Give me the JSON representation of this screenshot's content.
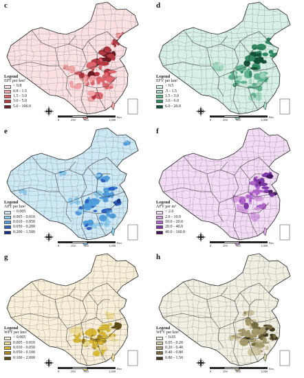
{
  "panels": [
    {
      "id": "c",
      "label": "c",
      "legend_title": "Legend",
      "legend_unit": "EPT per km²",
      "classes": [
        {
          "label": "< 0.8",
          "color": "#fbe1e1"
        },
        {
          "label": "0.8 - 1.5",
          "color": "#f3a4a7"
        },
        {
          "label": "1.5 - 3.0",
          "color": "#e0656d"
        },
        {
          "label": "3.0 - 5.0",
          "color": "#b9353f"
        },
        {
          "label": "5.0 - 100.0",
          "color": "#6a1a22"
        }
      ]
    },
    {
      "id": "d",
      "label": "d",
      "legend_title": "Legend",
      "legend_unit": "EFV per km²",
      "classes": [
        {
          "label": "< 0.5",
          "color": "#d6f0e6"
        },
        {
          "label": ".5 - 1.5",
          "color": "#9fd7bf"
        },
        {
          "label": "1.5 - 3.0",
          "color": "#5fb590"
        },
        {
          "label": "3.0 - 6.0",
          "color": "#2e8a60"
        },
        {
          "label": "6.0 - 20.0",
          "color": "#0f4f33"
        }
      ]
    },
    {
      "id": "e",
      "label": "e",
      "legend_title": "Legend",
      "legend_unit": "APT per km²",
      "classes": [
        {
          "label": "< 0.005",
          "color": "#cde9f6"
        },
        {
          "label": "0.005 - 0.010",
          "color": "#8fcdee"
        },
        {
          "label": "0.010 - 0.050",
          "color": "#4f9fe0"
        },
        {
          "label": "0.050 - 0.200",
          "color": "#2b63c4"
        },
        {
          "label": "0.200 - 1.500",
          "color": "#142f86"
        }
      ]
    },
    {
      "id": "f",
      "label": "f",
      "legend_title": "Legend",
      "legend_unit": "AFV per m²",
      "classes": [
        {
          "label": "< 2.0",
          "color": "#f3dcf5"
        },
        {
          "label": "2.0 - 10.0",
          "color": "#d89fe3"
        },
        {
          "label": "10.0 - 20.0",
          "color": "#b264cf"
        },
        {
          "label": "20.0 - 40.0",
          "color": "#7f36a8"
        },
        {
          "label": "40.0 - 160.0",
          "color": "#3f1260"
        }
      ]
    },
    {
      "id": "g",
      "label": "g",
      "legend_title": "Legend",
      "legend_unit": "WPT per km²",
      "classes": [
        {
          "label": "< 0.005",
          "color": "#f8efd8"
        },
        {
          "label": "0.005 - 0.010",
          "color": "#eedc96"
        },
        {
          "label": "0.010 - 0.050",
          "color": "#d9b832"
        },
        {
          "label": "0.050 - 0.100",
          "color": "#a8861a"
        },
        {
          "label": "0.100 - 2.000",
          "color": "#5b4a0f"
        }
      ]
    },
    {
      "id": "h",
      "label": "h",
      "legend_title": "Legend",
      "legend_unit": "WFV per km²",
      "classes": [
        {
          "label": "< 0.05",
          "color": "#f1eee2"
        },
        {
          "label": "0.05 - 0.20",
          "color": "#cfc7a2"
        },
        {
          "label": "0.20 - 0.40",
          "color": "#a49a6a"
        },
        {
          "label": "0.40 - 0.80",
          "color": "#756b3f"
        },
        {
          "label": "0.80 - 1.50",
          "color": "#3f3920"
        }
      ]
    }
  ],
  "scale": {
    "ticks": [
      "0",
      "250",
      "500",
      "1,000"
    ],
    "unit": "Km"
  },
  "compass": {
    "n": "N",
    "s": "S",
    "e": "E",
    "w": "W"
  }
}
